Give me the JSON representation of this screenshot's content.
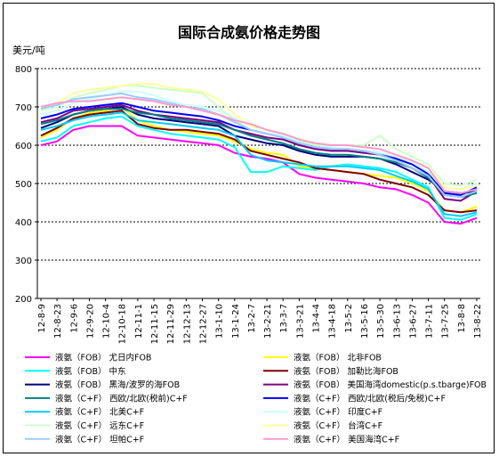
{
  "chart_data": {
    "type": "line",
    "title": "国际合成氨价格走势图",
    "ylabel": "美元/吨",
    "xlabel": "",
    "ylim": [
      200,
      800
    ],
    "yticks": [
      200,
      300,
      400,
      500,
      600,
      700,
      800
    ],
    "grid": "horizontal-dashed",
    "legend_position": "bottom",
    "x": [
      "12-8-9",
      "12-8-23",
      "12-9-6",
      "12-9-20",
      "12-10-4",
      "12-10-18",
      "12-11-1",
      "12-11-15",
      "12-11-29",
      "12-12-13",
      "12-12-27",
      "13-1-10",
      "13-1-24",
      "13-2-7",
      "13-2-21",
      "13-3-7",
      "13-3-21",
      "13-4-4",
      "13-4-18",
      "13-5-2",
      "13-5-16",
      "13-5-30",
      "13-6-13",
      "13-6-27",
      "13-7-11",
      "13-7-25",
      "13-8-8",
      "13-8-22"
    ],
    "series": [
      {
        "name": "液氨（FOB）  尤日内FOB",
        "color": "#ff00ff",
        "values": [
          600,
          610,
          640,
          650,
          650,
          650,
          625,
          620,
          615,
          610,
          605,
          600,
          580,
          570,
          565,
          555,
          525,
          515,
          510,
          505,
          500,
          490,
          485,
          470,
          450,
          400,
          395,
          410
        ]
      },
      {
        "name": "液氨（FOB）  北非FOB",
        "color": "#ffff00",
        "values": [
          620,
          640,
          670,
          685,
          690,
          700,
          665,
          650,
          640,
          635,
          630,
          625,
          610,
          590,
          580,
          575,
          545,
          540,
          535,
          530,
          525,
          520,
          515,
          500,
          480,
          430,
          425,
          440
        ]
      },
      {
        "name": "液氨（FOB）  中东",
        "color": "#00ffff",
        "values": [
          610,
          620,
          650,
          660,
          670,
          675,
          650,
          640,
          630,
          625,
          620,
          615,
          595,
          530,
          530,
          545,
          540,
          535,
          545,
          550,
          545,
          540,
          530,
          510,
          490,
          410,
          405,
          420
        ]
      },
      {
        "name": "液氨（FOB）  加勒比海FOB",
        "color": "#800000",
        "values": [
          625,
          645,
          670,
          680,
          685,
          690,
          655,
          645,
          640,
          640,
          635,
          630,
          615,
          585,
          575,
          565,
          555,
          540,
          535,
          530,
          525,
          510,
          500,
          490,
          470,
          430,
          425,
          430
        ]
      },
      {
        "name": "液氨（FOB）  黑海/波罗的海FOB",
        "color": "#000080",
        "values": [
          645,
          660,
          680,
          690,
          695,
          700,
          680,
          670,
          665,
          660,
          655,
          650,
          625,
          615,
          605,
          600,
          585,
          575,
          570,
          570,
          570,
          565,
          550,
          530,
          510,
          480,
          475,
          480
        ]
      },
      {
        "name": "液氨（FOB）  美国海湾domestic(p.s.tbarge)FOB",
        "color": "#800080",
        "values": [
          660,
          670,
          690,
          695,
          700,
          705,
          690,
          680,
          675,
          670,
          665,
          660,
          640,
          630,
          620,
          615,
          600,
          590,
          585,
          585,
          580,
          575,
          560,
          540,
          520,
          460,
          455,
          480
        ]
      },
      {
        "name": "液氨（C+F）  西欧/北欧(税前)C+F",
        "color": "#008080",
        "values": [
          655,
          665,
          680,
          690,
          695,
          695,
          685,
          680,
          670,
          665,
          660,
          655,
          640,
          625,
          615,
          605,
          590,
          580,
          575,
          575,
          570,
          565,
          555,
          540,
          515,
          470,
          465,
          475
        ]
      },
      {
        "name": "液氨（C+F）  西欧/北欧(税后/免税)C+F",
        "color": "#0000ff",
        "values": [
          670,
          680,
          695,
          700,
          705,
          710,
          700,
          690,
          685,
          680,
          675,
          665,
          650,
          640,
          630,
          620,
          605,
          595,
          590,
          590,
          585,
          580,
          565,
          550,
          525,
          475,
          470,
          490
        ]
      },
      {
        "name": "液氨（C+F）  北美C+F",
        "color": "#00ccff",
        "values": [
          640,
          650,
          665,
          675,
          680,
          685,
          665,
          660,
          655,
          650,
          645,
          640,
          625,
          575,
          560,
          555,
          550,
          545,
          545,
          545,
          540,
          535,
          520,
          505,
          485,
          420,
          415,
          425
        ]
      },
      {
        "name": "液氨（C+F）  印度C+F",
        "color": "#ccffff",
        "values": [
          680,
          690,
          710,
          720,
          730,
          740,
          740,
          730,
          715,
          705,
          700,
          690,
          670,
          650,
          640,
          625,
          610,
          600,
          595,
          590,
          585,
          580,
          570,
          555,
          530,
          490,
          485,
          500
        ]
      },
      {
        "name": "液氨（C+F）  远东C+F",
        "color": "#ccffcc",
        "values": [
          690,
          700,
          725,
          735,
          745,
          755,
          755,
          750,
          745,
          740,
          735,
          700,
          665,
          640,
          630,
          620,
          610,
          600,
          600,
          600,
          600,
          625,
          590,
          570,
          550,
          500,
          495,
          510
        ]
      },
      {
        "name": "液氨（C+F）  台湾C+F",
        "color": "#ffff99",
        "values": [
          700,
          710,
          735,
          745,
          750,
          755,
          760,
          760,
          750,
          745,
          740,
          720,
          680,
          650,
          640,
          630,
          615,
          605,
          600,
          600,
          595,
          590,
          575,
          560,
          540,
          490,
          485,
          495
        ]
      },
      {
        "name": "液氨（C+F）  坦帕C+F",
        "color": "#99ccff",
        "values": [
          695,
          705,
          720,
          725,
          730,
          735,
          725,
          720,
          710,
          700,
          695,
          680,
          660,
          640,
          630,
          620,
          605,
          595,
          590,
          590,
          585,
          575,
          560,
          540,
          520,
          470,
          465,
          480
        ]
      },
      {
        "name": "液氨（C+F）  美国海湾C+F",
        "color": "#ff99cc",
        "values": [
          700,
          710,
          715,
          715,
          720,
          725,
          720,
          715,
          705,
          700,
          690,
          680,
          665,
          655,
          640,
          630,
          615,
          605,
          600,
          600,
          595,
          590,
          575,
          560,
          540,
          480,
          475,
          485
        ]
      }
    ]
  }
}
